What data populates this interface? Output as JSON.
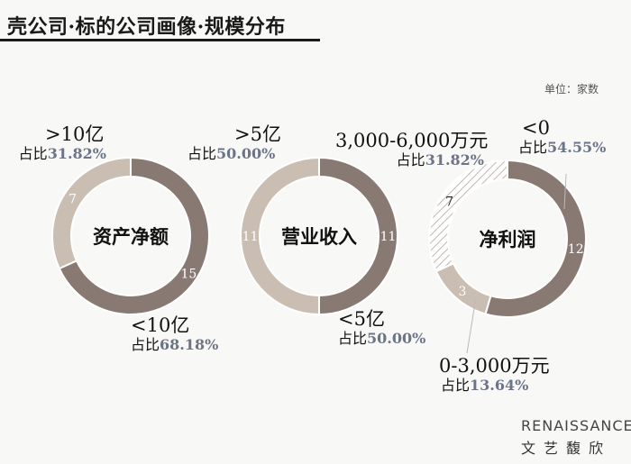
{
  "title": "壳公司·标的公司画像·规模分布",
  "unit": "单位：家数",
  "brand": {
    "en": "RENAISSANCE",
    "cn": "文艺馥欣"
  },
  "colors": {
    "dark": "#887a73",
    "light": "#cabdb1",
    "hatch_line": "#c2b6ad"
  },
  "labels": {
    "c1_top_cat": ">10亿",
    "c1_top_prefix": "占比",
    "c1_top_pct": "31.82%",
    "c1_bot_cat": "<10亿",
    "c1_bot_prefix": "占比",
    "c1_bot_pct": "68.18%",
    "c2_top_cat": ">5亿",
    "c2_top_prefix": "占比",
    "c2_top_pct": "50.00%",
    "c2_bot_cat": "<5亿",
    "c2_bot_prefix": "占比",
    "c2_bot_pct": "50.00%",
    "c3_mid_cat": "3,000-6,000万元",
    "c3_mid_prefix": "占比",
    "c3_mid_pct": "31.82%",
    "c3_neg_cat": "<0",
    "c3_neg_prefix": "占比",
    "c3_neg_pct": "54.55%",
    "c3_low_cat": "0-3,000万元",
    "c3_low_prefix": "占比",
    "c3_low_pct": "13.64%"
  },
  "chart_data": [
    {
      "type": "pie",
      "title": "资产净额",
      "categories": [
        ">10亿",
        "<10亿"
      ],
      "values": [
        7,
        15
      ],
      "percentages": [
        "31.82%",
        "68.18%"
      ],
      "style": "donut"
    },
    {
      "type": "pie",
      "title": "营业收入",
      "categories": [
        ">5亿",
        "<5亿"
      ],
      "values": [
        11,
        11
      ],
      "percentages": [
        "50.00%",
        "50.00%"
      ],
      "style": "donut"
    },
    {
      "type": "pie",
      "title": "净利润",
      "categories": [
        "<0",
        "0-3,000万元",
        "3,000-6,000万元"
      ],
      "values": [
        12,
        3,
        7
      ],
      "percentages": [
        "54.55%",
        "13.64%",
        "31.82%"
      ],
      "style": "donut"
    }
  ]
}
